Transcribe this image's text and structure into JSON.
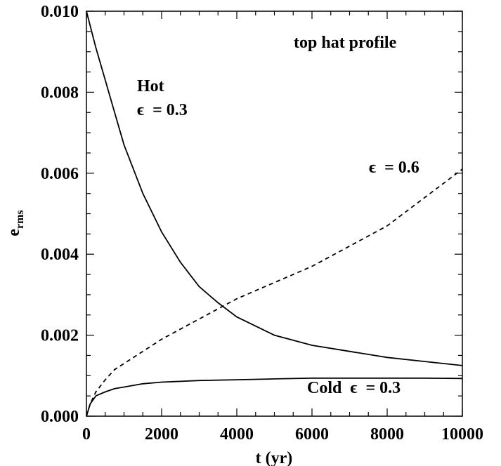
{
  "chart_data": {
    "type": "line",
    "title": "",
    "xlabel": "t (yr)",
    "ylabel": "e",
    "ylabel_sub": "rms",
    "xlim": [
      0,
      10000
    ],
    "ylim": [
      0.0,
      0.01
    ],
    "grid": false,
    "x_major_ticks": [
      0,
      2000,
      4000,
      6000,
      8000,
      10000
    ],
    "x_tick_labels": [
      "0",
      "2000",
      "4000",
      "6000",
      "8000",
      "10000"
    ],
    "x_minor_step": 500,
    "y_major_ticks": [
      0.0,
      0.002,
      0.004,
      0.006,
      0.008,
      0.01
    ],
    "y_tick_labels": [
      "0.000",
      "0.002",
      "0.004",
      "0.006",
      "0.008",
      "0.010"
    ],
    "y_minor_step": 0.0005,
    "series": [
      {
        "key": "hot",
        "style": "solid",
        "x": [
          0,
          250,
          500,
          750,
          1000,
          1500,
          2000,
          2500,
          3000,
          3500,
          4000,
          5000,
          6000,
          7000,
          8000,
          9000,
          10000
        ],
        "y": [
          0.01,
          0.0091,
          0.0083,
          0.0075,
          0.0067,
          0.0055,
          0.00455,
          0.0038,
          0.0032,
          0.0028,
          0.00245,
          0.002,
          0.00175,
          0.0016,
          0.00145,
          0.00135,
          0.00125
        ]
      },
      {
        "key": "eps06",
        "style": "dashed",
        "x": [
          0,
          100,
          250,
          500,
          750,
          1000,
          1500,
          2000,
          3000,
          4000,
          5000,
          6000,
          7000,
          8000,
          9000,
          10000
        ],
        "y": [
          0.0,
          0.0003,
          0.0006,
          0.0009,
          0.00115,
          0.0013,
          0.0016,
          0.0019,
          0.0024,
          0.0029,
          0.0033,
          0.0037,
          0.0042,
          0.0047,
          0.0054,
          0.0061
        ]
      },
      {
        "key": "cold",
        "style": "solid",
        "x": [
          0,
          100,
          250,
          500,
          750,
          1000,
          1500,
          2000,
          3000,
          4000,
          5000,
          6000,
          7000,
          8000,
          9000,
          10000
        ],
        "y": [
          0.0,
          0.0003,
          0.0005,
          0.0006,
          0.00068,
          0.00072,
          0.0008,
          0.00084,
          0.00088,
          0.0009,
          0.00092,
          0.00094,
          0.00094,
          0.00094,
          0.00094,
          0.00093
        ]
      }
    ],
    "annotations": {
      "profile": "top hat profile",
      "hot": "Hot",
      "hot_eps": "ϵ  = 0.3",
      "dashed_eps": "ϵ  = 0.6",
      "cold": "Cold  ϵ  = 0.3"
    }
  }
}
